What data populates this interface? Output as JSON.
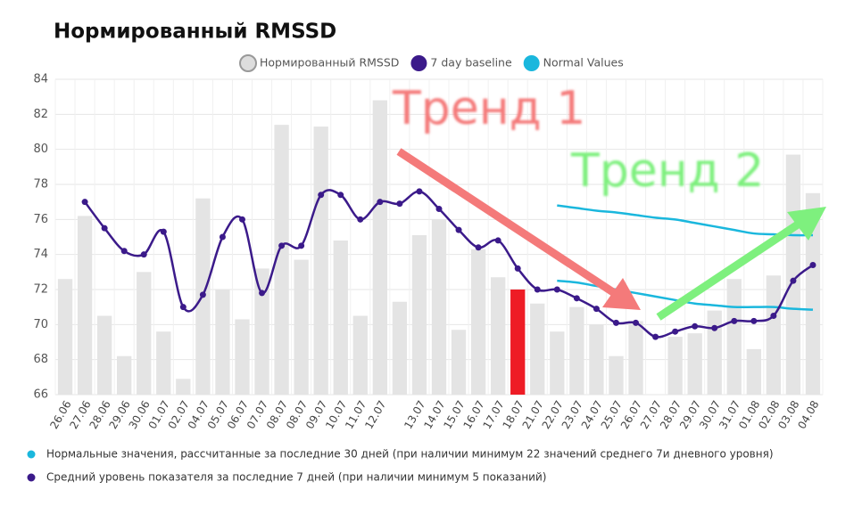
{
  "chart_data": {
    "type": "bar",
    "title": "Нормированный RMSSD",
    "categories": [
      "26.06",
      "27.06",
      "28.06",
      "29.06",
      "30.06",
      "01.07",
      "02.07",
      "04.07",
      "05.07",
      "06.07",
      "07.07",
      "08.07",
      "08.07",
      "09.07",
      "10.07",
      "11.07",
      "12.07",
      null,
      "13.07",
      "14.07",
      "15.07",
      "16.07",
      "17.07",
      "18.07",
      "21.07",
      "22.07",
      "23.07",
      "24.07",
      "25.07",
      "26.07",
      "27.07",
      "28.07",
      "29.07",
      "30.07",
      "31.07",
      "01.08",
      "02.08",
      "03.08",
      "04.08"
    ],
    "series": [
      {
        "name": "Нормированный RMSSD",
        "color": "#e4e4e4",
        "highlight": {
          "index": 23,
          "color": "#ee1c25"
        },
        "values": [
          72.6,
          76.2,
          70.5,
          68.2,
          73.0,
          69.6,
          66.9,
          77.2,
          72.0,
          70.3,
          73.2,
          81.4,
          73.7,
          81.3,
          74.8,
          70.5,
          82.8,
          71.3,
          75.1,
          76.0,
          69.7,
          74.3,
          72.7,
          72.0,
          71.2,
          69.6,
          71.0,
          70.0,
          68.2,
          70.2,
          null,
          69.3,
          69.5,
          70.8,
          72.6,
          68.6,
          72.8,
          79.7,
          77.5
        ]
      },
      {
        "name": "7 day baseline",
        "color": "#3b1a8a",
        "values": [
          null,
          77.0,
          75.5,
          74.2,
          74.0,
          75.3,
          71.0,
          71.7,
          75.0,
          76.0,
          71.8,
          74.5,
          74.5,
          77.4,
          77.4,
          76.0,
          77.0,
          76.9,
          77.6,
          76.6,
          75.4,
          74.4,
          74.8,
          73.2,
          72.0,
          72.0,
          71.5,
          70.9,
          70.1,
          70.1,
          69.3,
          69.6,
          69.9,
          69.8,
          70.2,
          70.2,
          70.5,
          72.5,
          73.4
        ]
      },
      {
        "name": "Normal Values",
        "color": "#1ab7dd",
        "upper": [
          null,
          null,
          null,
          null,
          null,
          null,
          null,
          null,
          null,
          null,
          null,
          null,
          null,
          null,
          null,
          null,
          null,
          null,
          null,
          null,
          null,
          null,
          null,
          null,
          null,
          76.8,
          76.65,
          76.5,
          76.4,
          76.25,
          76.1,
          76.0,
          75.8,
          75.6,
          75.4,
          75.2,
          75.15,
          75.1,
          75.1
        ],
        "lower": [
          null,
          null,
          null,
          null,
          null,
          null,
          null,
          null,
          null,
          null,
          null,
          null,
          null,
          null,
          null,
          null,
          null,
          null,
          null,
          null,
          null,
          null,
          null,
          null,
          null,
          72.5,
          72.4,
          72.2,
          72.0,
          71.8,
          71.6,
          71.4,
          71.2,
          71.1,
          71.0,
          71.0,
          71.0,
          70.9,
          70.85
        ]
      }
    ],
    "ylim": [
      66,
      84
    ],
    "yticks": [
      66,
      68,
      70,
      72,
      74,
      76,
      78,
      80,
      82,
      84
    ],
    "grid": true,
    "annotations": [
      {
        "text": "Тренд 1",
        "color": "#f47a7a"
      },
      {
        "text": "Тренд 2",
        "color": "#7ef07e"
      }
    ],
    "footnotes": [
      {
        "text": "Нормальные значения, рассчитанные за последние 30 дней (при наличии минимум 22 значений среднего 7и дневного уровня)",
        "color": "#1ab7dd"
      },
      {
        "text": "Средний уровень показателя за последние 7 дней (при наличии минимум 5 показаний)",
        "color": "#3b1a8a"
      }
    ]
  }
}
